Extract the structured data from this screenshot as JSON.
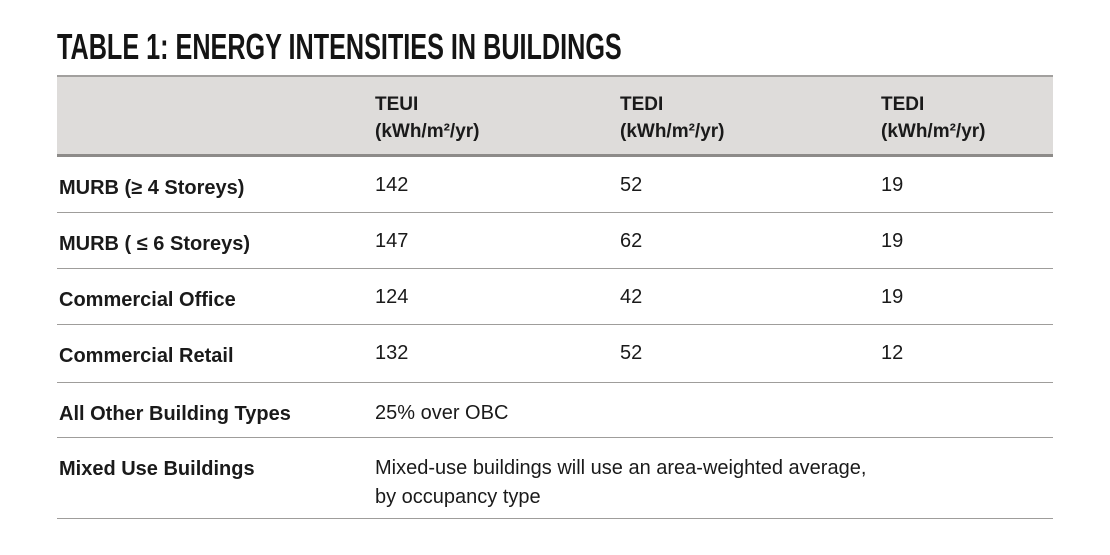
{
  "title": "TABLE 1: ENERGY INTENSITIES IN BUILDINGS",
  "colors": {
    "header_background": "#dedcda",
    "header_rule": "#8d8b89",
    "row_rule": "#9f9d9b",
    "text": "#1a1a1a",
    "page_background": "#ffffff"
  },
  "table": {
    "columns": [
      {
        "name": "TEUI",
        "unit": "(kWh/m²/yr)"
      },
      {
        "name": "TEDI",
        "unit": "(kWh/m²/yr)"
      },
      {
        "name": "TEDI",
        "unit": "(kWh/m²/yr)"
      }
    ],
    "rows": [
      {
        "label": "MURB (≥ 4 Storeys)",
        "values": [
          "142",
          "52",
          "19"
        ]
      },
      {
        "label": "MURB ( ≤ 6 Storeys)",
        "values": [
          "147",
          "62",
          "19"
        ]
      },
      {
        "label": "Commercial Office",
        "values": [
          "124",
          "42",
          "19"
        ]
      },
      {
        "label": "Commercial Retail",
        "values": [
          "132",
          "52",
          "12"
        ]
      },
      {
        "label": "All Other Building Types",
        "note": "25% over OBC"
      },
      {
        "label": "Mixed Use Buildings",
        "note": "Mixed-use buildings will use an area-weighted average,\nby occupancy type"
      }
    ]
  },
  "chart_data": {
    "type": "table",
    "title": "TABLE 1: ENERGY INTENSITIES IN BUILDINGS",
    "column_headers": [
      "",
      "TEUI (kWh/m²/yr)",
      "TEDI (kWh/m²/yr)",
      "TEDI (kWh/m²/yr)"
    ],
    "rows": [
      [
        "MURB (≥ 4 Storeys)",
        142,
        52,
        19
      ],
      [
        "MURB ( ≤ 6 Storeys)",
        147,
        62,
        19
      ],
      [
        "Commercial Office",
        124,
        42,
        19
      ],
      [
        "Commercial Retail",
        132,
        52,
        12
      ],
      [
        "All Other Building Types",
        "25% over OBC",
        "",
        ""
      ],
      [
        "Mixed Use Buildings",
        "Mixed-use buildings will use an area-weighted average, by occupancy type",
        "",
        ""
      ]
    ]
  }
}
